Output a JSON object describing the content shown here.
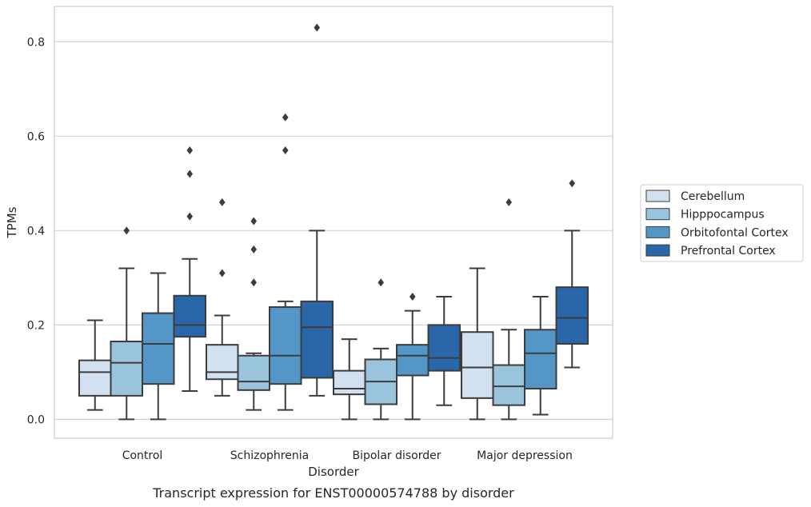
{
  "chart_data": {
    "type": "box",
    "title": "",
    "caption": "Transcript expression for ENST00000574788 by disorder",
    "xlabel": "Disorder",
    "ylabel": "TPMs",
    "ylim": [
      -0.04,
      0.875
    ],
    "yticks": [
      "0.0",
      "0.2",
      "0.4",
      "0.6",
      "0.8"
    ],
    "grid": true,
    "legend_position": "right",
    "categories": [
      "Control",
      "Schizophrenia",
      "Bipolar disorder",
      "Major depression"
    ],
    "series": [
      {
        "name": "Cerebellum",
        "color": "#d1e1f0",
        "boxes": [
          {
            "whisker_low": 0.02,
            "q1": 0.05,
            "median": 0.1,
            "q3": 0.125,
            "whisker_high": 0.21,
            "outliers": []
          },
          {
            "whisker_low": 0.05,
            "q1": 0.085,
            "median": 0.1,
            "q3": 0.158,
            "whisker_high": 0.22,
            "outliers": [
              0.31,
              0.46
            ]
          },
          {
            "whisker_low": 0.0,
            "q1": 0.053,
            "median": 0.065,
            "q3": 0.103,
            "whisker_high": 0.17,
            "outliers": []
          },
          {
            "whisker_low": 0.0,
            "q1": 0.045,
            "median": 0.11,
            "q3": 0.185,
            "whisker_high": 0.32,
            "outliers": []
          }
        ]
      },
      {
        "name": "Hipppocampus",
        "color": "#9ac4de",
        "boxes": [
          {
            "whisker_low": 0.0,
            "q1": 0.05,
            "median": 0.12,
            "q3": 0.165,
            "whisker_high": 0.32,
            "outliers": [
              0.4
            ]
          },
          {
            "whisker_low": 0.02,
            "q1": 0.062,
            "median": 0.08,
            "q3": 0.135,
            "whisker_high": 0.14,
            "outliers": [
              0.29,
              0.36,
              0.42
            ]
          },
          {
            "whisker_low": 0.0,
            "q1": 0.032,
            "median": 0.08,
            "q3": 0.127,
            "whisker_high": 0.15,
            "outliers": [
              0.29
            ]
          },
          {
            "whisker_low": 0.0,
            "q1": 0.03,
            "median": 0.07,
            "q3": 0.115,
            "whisker_high": 0.19,
            "outliers": [
              0.46
            ]
          }
        ]
      },
      {
        "name": "Orbitofontal Cortex",
        "color": "#5596c8",
        "boxes": [
          {
            "whisker_low": 0.0,
            "q1": 0.075,
            "median": 0.16,
            "q3": 0.225,
            "whisker_high": 0.31,
            "outliers": []
          },
          {
            "whisker_low": 0.02,
            "q1": 0.075,
            "median": 0.135,
            "q3": 0.238,
            "whisker_high": 0.25,
            "outliers": [
              0.57,
              0.64
            ]
          },
          {
            "whisker_low": 0.0,
            "q1": 0.093,
            "median": 0.135,
            "q3": 0.158,
            "whisker_high": 0.23,
            "outliers": [
              0.26
            ]
          },
          {
            "whisker_low": 0.01,
            "q1": 0.065,
            "median": 0.14,
            "q3": 0.19,
            "whisker_high": 0.26,
            "outliers": []
          }
        ]
      },
      {
        "name": "Prefrontal Cortex",
        "color": "#2967a9",
        "boxes": [
          {
            "whisker_low": 0.06,
            "q1": 0.175,
            "median": 0.2,
            "q3": 0.262,
            "whisker_high": 0.34,
            "outliers": [
              0.43,
              0.52,
              0.57
            ]
          },
          {
            "whisker_low": 0.05,
            "q1": 0.088,
            "median": 0.195,
            "q3": 0.25,
            "whisker_high": 0.4,
            "outliers": [
              0.83
            ]
          },
          {
            "whisker_low": 0.03,
            "q1": 0.103,
            "median": 0.13,
            "q3": 0.2,
            "whisker_high": 0.26,
            "outliers": []
          },
          {
            "whisker_low": 0.11,
            "q1": 0.16,
            "median": 0.215,
            "q3": 0.28,
            "whisker_high": 0.4,
            "outliers": [
              0.5
            ]
          }
        ]
      }
    ]
  }
}
